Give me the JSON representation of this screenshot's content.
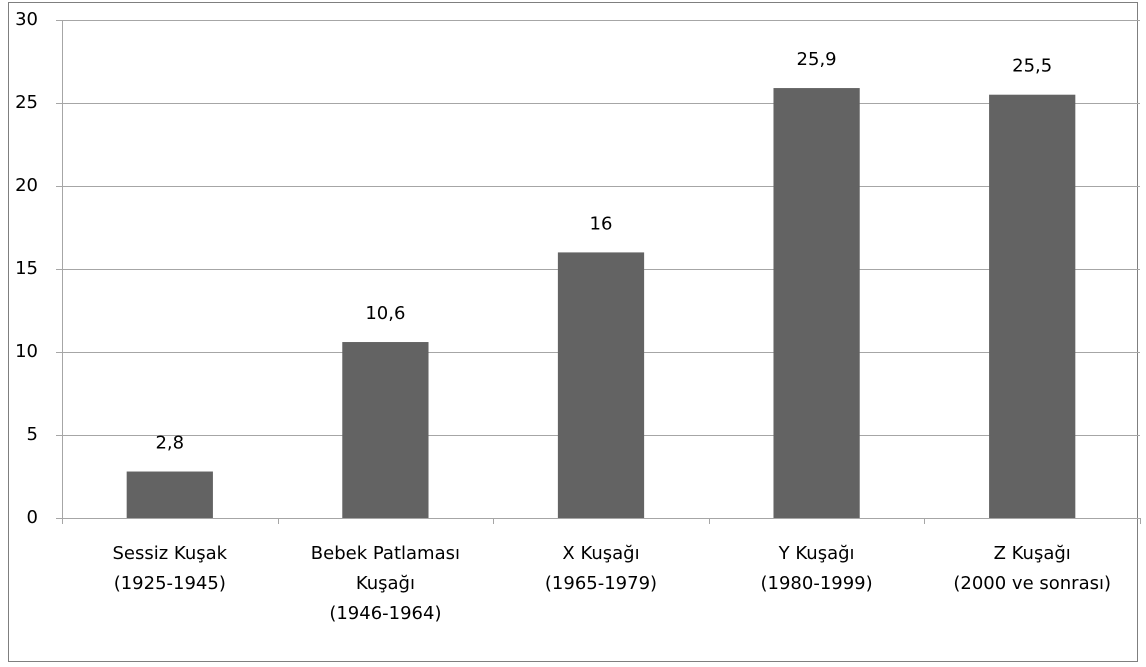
{
  "chart_data": {
    "type": "bar",
    "categories": [
      [
        "Sessiz Kuşak",
        "(1925-1945)"
      ],
      [
        "Bebek Patlaması",
        "Kuşağı",
        "(1946-1964)"
      ],
      [
        "X Kuşağı",
        "(1965-1979)"
      ],
      [
        "Y Kuşağı",
        "(1980-1999)"
      ],
      [
        "Z Kuşağı",
        "(2000 ve sonrası)"
      ]
    ],
    "values": [
      2.8,
      10.6,
      16,
      25.9,
      25.5
    ],
    "value_labels": [
      "2,8",
      "10,6",
      "16",
      "25,9",
      "25,5"
    ],
    "color": "#636363",
    "ylim": [
      0,
      30
    ],
    "yticks": [
      0,
      5,
      10,
      15,
      20,
      25,
      30
    ],
    "grid": true
  }
}
